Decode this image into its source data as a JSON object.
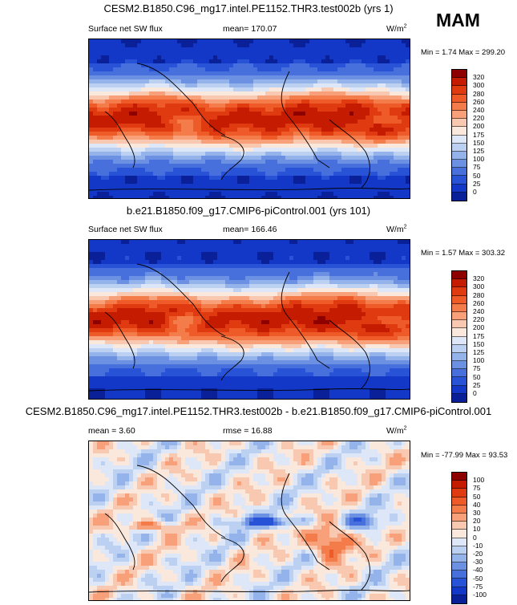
{
  "season": "MAM",
  "panels": [
    {
      "title": "CESM2.B1850.C96_mg17.intel.PE1152.THR3.test002b (yrs 1)",
      "left_label": "Surface net SW flux",
      "center_label": "mean= 170.07",
      "units": "W/m",
      "units_sup": "2",
      "min_max": "Min =   1.74 Max = 299.20",
      "kind": "abs"
    },
    {
      "title": "b.e21.B1850.f09_g17.CMIP6-piControl.001 (yrs 101)",
      "left_label": "Surface net SW flux",
      "center_label": "mean= 166.46",
      "units": "W/m",
      "units_sup": "2",
      "min_max": "Min =   1.57 Max = 303.32",
      "kind": "abs"
    },
    {
      "title": "CESM2.B1850.C96_mg17.intel.PE1152.THR3.test002b - b.e21.B1850.f09_g17.CMIP6-piControl.001",
      "left_label": "mean =   3.60",
      "center_label": "rmse =  16.88",
      "units": "W/m",
      "units_sup": "2",
      "min_max": "Min = -77.99 Max =  93.53",
      "kind": "diff"
    }
  ],
  "colorbar_abs": {
    "labels": [
      "320",
      "300",
      "280",
      "260",
      "240",
      "220",
      "200",
      "175",
      "150",
      "125",
      "100",
      "75",
      "50",
      "25",
      "0"
    ],
    "colors": [
      "#8e0000",
      "#c51b00",
      "#e03a10",
      "#ee5a28",
      "#f47c4a",
      "#f7a07a",
      "#f9c8b0",
      "#fbe8dc",
      "#dde7f7",
      "#bcd1f1",
      "#94b3ea",
      "#6c90e2",
      "#4870dc",
      "#2953d6",
      "#1338c8",
      "#0a2098"
    ]
  },
  "colorbar_diff": {
    "labels": [
      "100",
      "75",
      "50",
      "40",
      "30",
      "20",
      "10",
      "0",
      "-10",
      "-20",
      "-30",
      "-40",
      "-50",
      "-75",
      "-100"
    ],
    "colors": [
      "#8e0000",
      "#c51b00",
      "#e03a10",
      "#ee5a28",
      "#f47c4a",
      "#f7a07a",
      "#f9c8b0",
      "#fbe8dc",
      "#dde7f7",
      "#bcd1f1",
      "#94b3ea",
      "#6c90e2",
      "#4870dc",
      "#2953d6",
      "#1338c8",
      "#0a2098"
    ]
  }
}
